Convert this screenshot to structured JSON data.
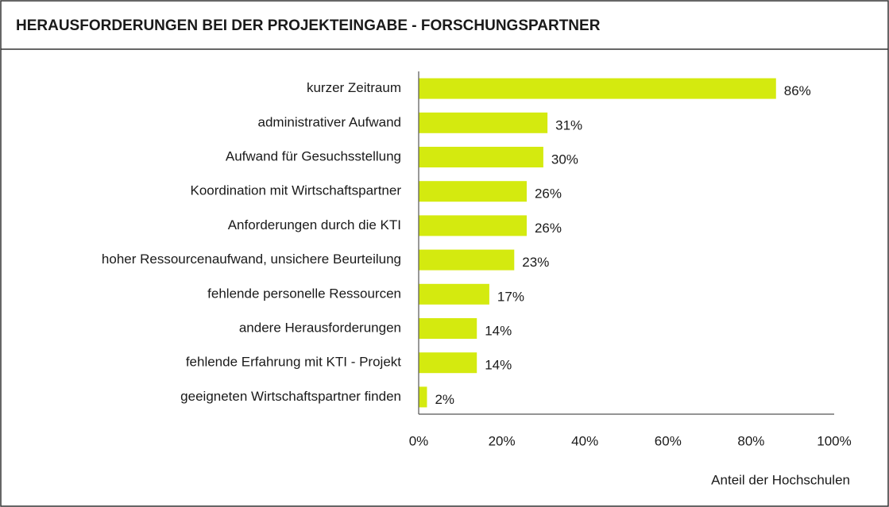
{
  "chart_data": {
    "type": "bar",
    "orientation": "horizontal",
    "title": "HERAUSFORDERUNGEN BEI DER PROJEKTEINGABE - FORSCHUNGSPARTNER",
    "x_label": "Anteil der Hochschulen",
    "categories": [
      "kurzer Zeitraum",
      "administrativer Aufwand",
      "Aufwand für Gesuchsstellung",
      "Koordination mit Wirtschaftspartner",
      "Anforderungen durch die KTI",
      "hoher Ressourcenaufwand, unsichere Beurteilung",
      "fehlende personelle Ressourcen",
      "andere Herausforderungen",
      "fehlende Erfahrung mit KTI - Projekt",
      "geeigneten Wirtschaftspartner finden"
    ],
    "values": [
      86,
      31,
      30,
      26,
      26,
      23,
      17,
      14,
      14,
      2
    ],
    "value_labels": [
      "86%",
      "31%",
      "30%",
      "26%",
      "26%",
      "23%",
      "17%",
      "14%",
      "14%",
      "2%"
    ],
    "color": "#d4ea0f",
    "xlim": [
      0,
      100
    ],
    "xticks": [
      {
        "value": 0,
        "label": "0%"
      },
      {
        "value": 20,
        "label": "20%"
      },
      {
        "value": 40,
        "label": "40%"
      },
      {
        "value": 60,
        "label": "60%"
      },
      {
        "value": 80,
        "label": "80%"
      },
      {
        "value": 100,
        "label": "100%"
      }
    ]
  }
}
